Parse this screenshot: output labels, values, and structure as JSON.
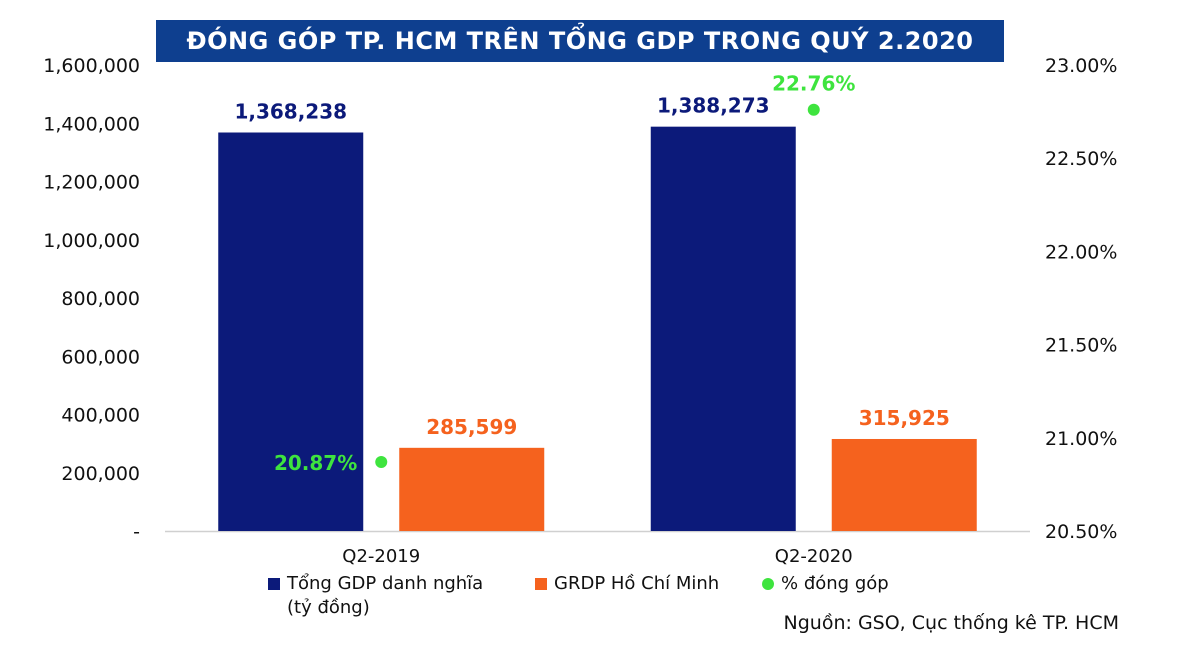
{
  "chart_data": {
    "type": "bar",
    "title": "ĐÓNG GÓP TP. HCM TRÊN TỔNG GDP TRONG QUÝ 2.2020",
    "categories": [
      "Q2-2019",
      "Q2-2020"
    ],
    "series": [
      {
        "name": "Tổng GDP danh nghĩa\n(tỷ đồng)",
        "values": [
          1368238,
          1388273
        ],
        "labels": [
          "1,368,238",
          "1,388,273"
        ],
        "color": "#0c1a7a",
        "axis": "left",
        "kind": "bar"
      },
      {
        "name": "GRDP Hồ Chí Minh",
        "values": [
          285599,
          315925
        ],
        "labels": [
          "285,599",
          "315,925"
        ],
        "color": "#f5621e",
        "axis": "left",
        "kind": "bar"
      },
      {
        "name": "% đóng góp",
        "values": [
          20.87,
          22.76
        ],
        "labels": [
          "20.87%",
          "22.76%"
        ],
        "color": "#3ee43e",
        "axis": "right",
        "kind": "scatter"
      }
    ],
    "ylim": [
      0,
      1600000
    ],
    "yticks": [
      0,
      200000,
      400000,
      600000,
      800000,
      1000000,
      1200000,
      1400000,
      1600000
    ],
    "yticklabels": [
      "-",
      "200,000",
      "400,000",
      "600,000",
      "800,000",
      "1,000,000",
      "1,200,000",
      "1,400,000",
      "1,600,000"
    ],
    "y2lim": [
      20.5,
      23.0
    ],
    "y2ticks": [
      20.5,
      21.0,
      21.5,
      22.0,
      22.5,
      23.0
    ],
    "y2ticklabels": [
      "20.50%",
      "21.00%",
      "21.50%",
      "22.00%",
      "22.50%",
      "23.00%"
    ],
    "grid": false,
    "legend_position": "bottom",
    "title_background": "#0e3f8f",
    "label_text_colors": [
      "#0c1a7a",
      "#f5621e",
      "#3ee43e"
    ]
  },
  "source": "Nguồn: GSO, Cục thống kê TP. HCM"
}
